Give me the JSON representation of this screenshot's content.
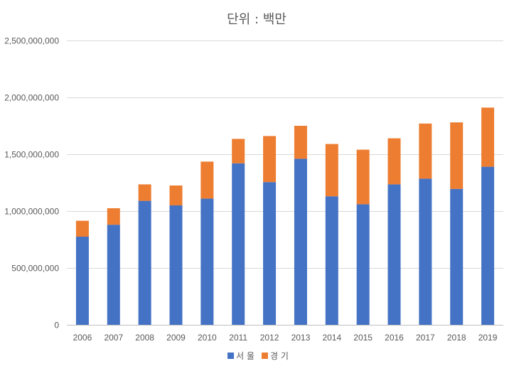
{
  "chart_data": {
    "type": "bar",
    "stacked": true,
    "title": "단위 : 백만",
    "xlabel": "",
    "ylabel": "",
    "categories": [
      "2006",
      "2007",
      "2008",
      "2009",
      "2010",
      "2011",
      "2012",
      "2013",
      "2014",
      "2015",
      "2016",
      "2017",
      "2018",
      "2019"
    ],
    "series": [
      {
        "name": "서 울",
        "color": "#4472C4",
        "values": [
          775000000,
          880000000,
          1090000000,
          1050000000,
          1110000000,
          1420000000,
          1255000000,
          1460000000,
          1130000000,
          1060000000,
          1235000000,
          1285000000,
          1195000000,
          1390000000
        ]
      },
      {
        "name": "경 기",
        "color": "#ED7D31",
        "values": [
          140000000,
          145000000,
          145000000,
          175000000,
          325000000,
          215000000,
          405000000,
          290000000,
          460000000,
          480000000,
          405000000,
          485000000,
          585000000,
          520000000
        ]
      }
    ],
    "ylim": [
      0,
      2500000000
    ],
    "yticks": [
      0,
      500000000,
      1000000000,
      1500000000,
      2000000000,
      2500000000
    ],
    "ytick_labels": [
      "0",
      "500,000,000",
      "1,000,000,000",
      "1,500,000,000",
      "2,000,000,000",
      "2,500,000,000"
    ],
    "grid": true,
    "legend_position": "bottom"
  }
}
